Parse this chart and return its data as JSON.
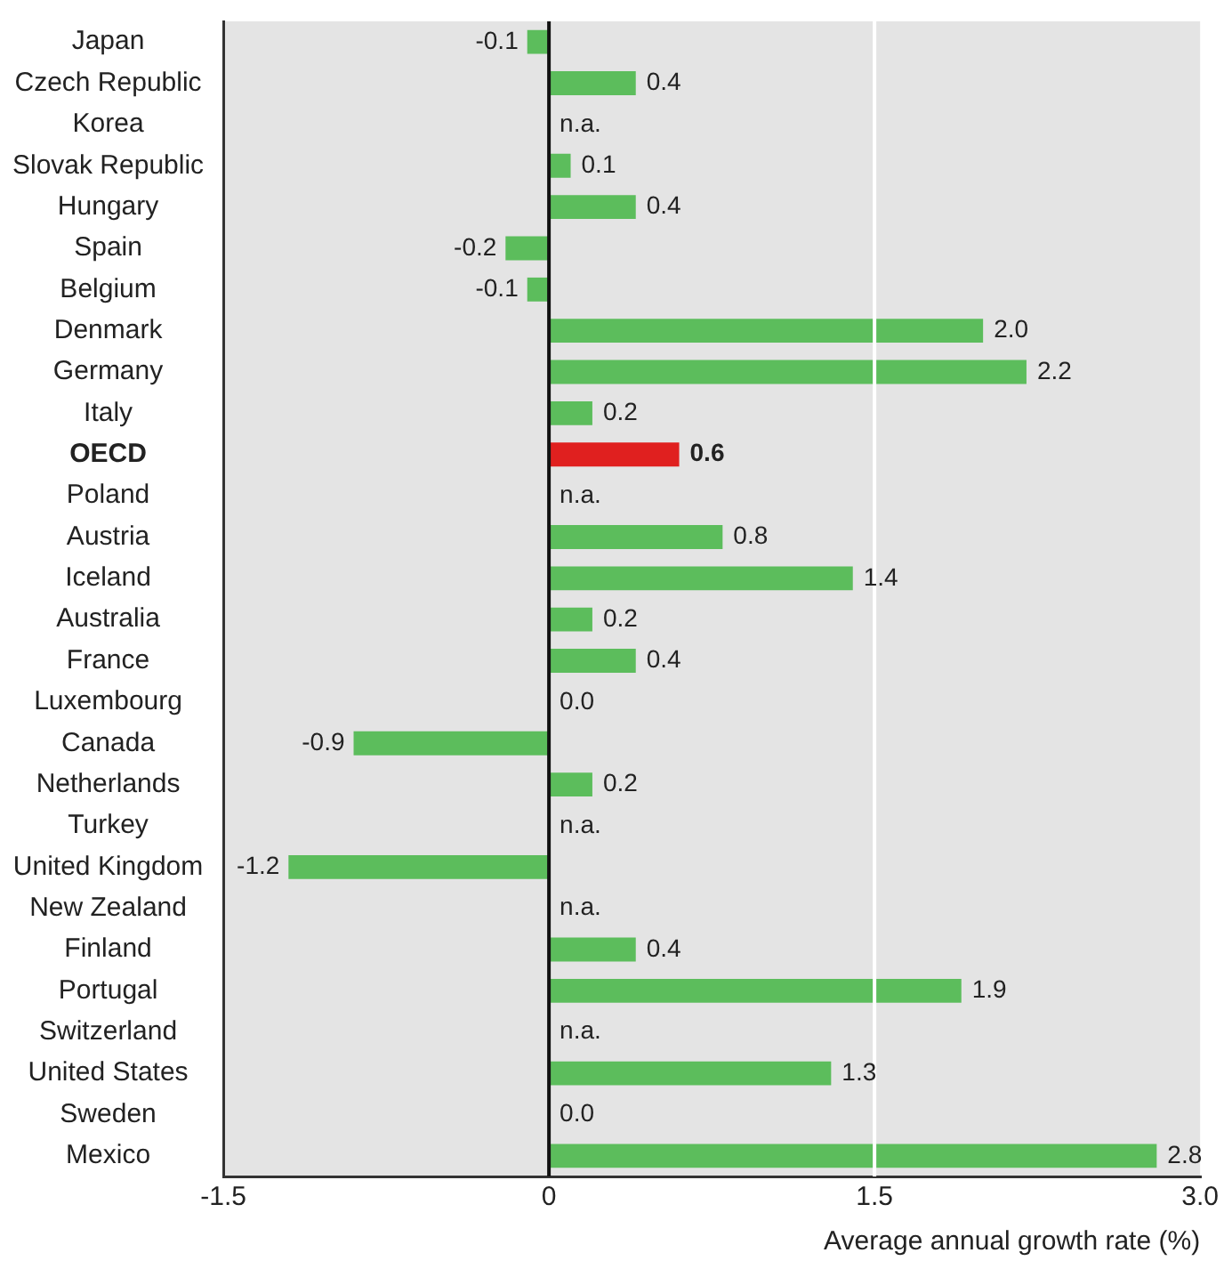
{
  "chart_data": {
    "type": "bar",
    "orientation": "horizontal",
    "xlabel": "Average annual growth rate (%)",
    "categories": [
      "Japan",
      "Czech Republic",
      "Korea",
      "Slovak Republic",
      "Hungary",
      "Spain",
      "Belgium",
      "Denmark",
      "Germany",
      "Italy",
      "OECD",
      "Poland",
      "Austria",
      "Iceland",
      "Australia",
      "France",
      "Luxembourg",
      "Canada",
      "Netherlands",
      "Turkey",
      "United Kingdom",
      "New Zealand",
      "Finland",
      "Portugal",
      "Switzerland",
      "United States",
      "Sweden",
      "Mexico"
    ],
    "values": [
      -0.1,
      0.4,
      null,
      0.1,
      0.4,
      -0.2,
      -0.1,
      2.0,
      2.2,
      0.2,
      0.6,
      null,
      0.8,
      1.4,
      0.2,
      0.4,
      0.0,
      -0.9,
      0.2,
      null,
      -1.2,
      null,
      0.4,
      1.9,
      null,
      1.3,
      0.0,
      2.8
    ],
    "value_labels": [
      "-0.1",
      "0.4",
      "n.a.",
      "0.1",
      "0.4",
      "-0.2",
      "-0.1",
      "2.0",
      "2.2",
      "0.2",
      "0.6",
      "n.a.",
      "0.8",
      "1.4",
      "0.2",
      "0.4",
      "0.0",
      "-0.9",
      "0.2",
      "n.a.",
      "-1.2",
      "n.a.",
      "0.4",
      "1.9",
      "n.a.",
      "1.3",
      "0.0",
      "2.8"
    ],
    "colors": [
      "#5cbd5c",
      "#5cbd5c",
      "#5cbd5c",
      "#5cbd5c",
      "#5cbd5c",
      "#5cbd5c",
      "#5cbd5c",
      "#5cbd5c",
      "#5cbd5c",
      "#5cbd5c",
      "#e0201f",
      "#5cbd5c",
      "#5cbd5c",
      "#5cbd5c",
      "#5cbd5c",
      "#5cbd5c",
      "#5cbd5c",
      "#5cbd5c",
      "#5cbd5c",
      "#5cbd5c",
      "#5cbd5c",
      "#5cbd5c",
      "#5cbd5c",
      "#5cbd5c",
      "#5cbd5c",
      "#5cbd5c",
      "#5cbd5c",
      "#5cbd5c"
    ],
    "xlim": [
      -1.5,
      3.0
    ],
    "xticks": [
      -1.5,
      0,
      1.5,
      {
        "value": 3.0,
        "label": "3.0"
      }
    ],
    "ref_lines": [
      {
        "axis": "x",
        "value": 0,
        "color": "#111111"
      },
      {
        "axis": "x",
        "value": 1.5,
        "color": "#ffffff"
      }
    ],
    "legend": false
  }
}
